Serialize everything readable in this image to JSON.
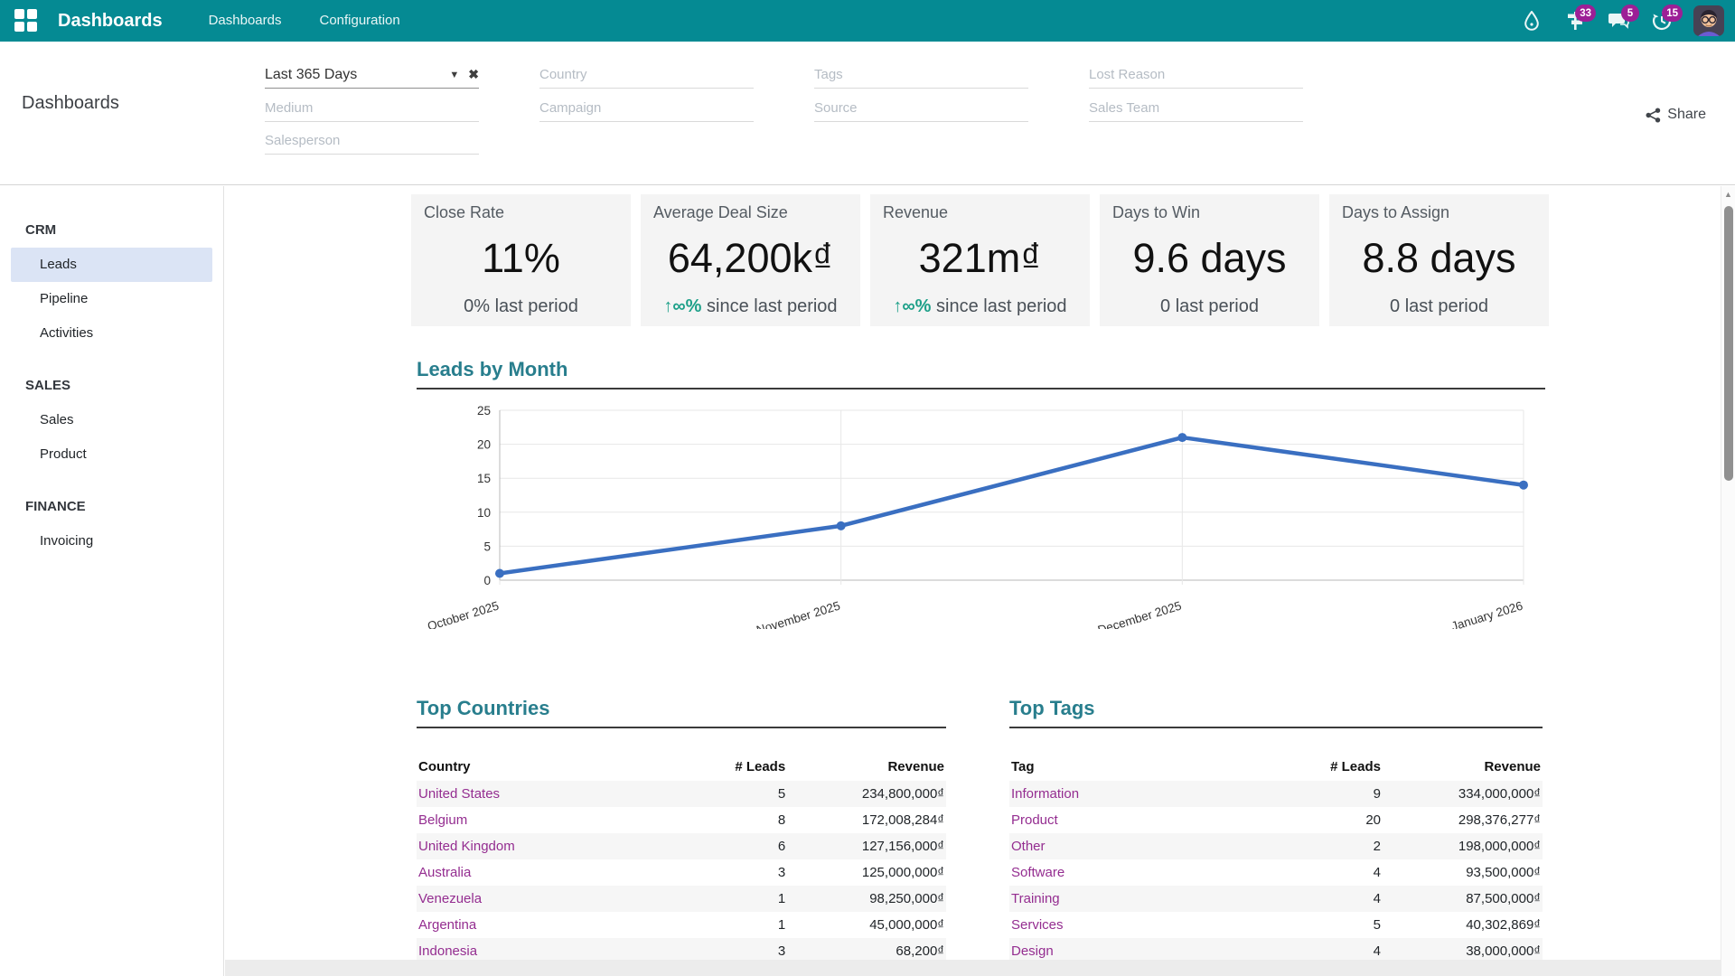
{
  "navbar": {
    "brand": "Dashboards",
    "menus": [
      "Dashboards",
      "Configuration"
    ],
    "icons": [
      "apps-grid-icon",
      "drop-icon",
      "activities-icon",
      "messages-icon",
      "history-icon",
      "avatar"
    ],
    "badges": {
      "activities": "33",
      "messages": "5",
      "history": "15"
    }
  },
  "header": {
    "page_title": "Dashboards",
    "share_label": "Share",
    "filters": {
      "facet": {
        "label": "Last 365 Days"
      },
      "placeholders": {
        "country": "Country",
        "tags": "Tags",
        "lost_reason": "Lost Reason",
        "medium": "Medium",
        "campaign": "Campaign",
        "source": "Source",
        "sales_team": "Sales Team",
        "salesperson": "Salesperson"
      }
    }
  },
  "sidebar": {
    "sections": [
      {
        "header": "CRM",
        "items": [
          {
            "label": "Leads",
            "active": true
          },
          {
            "label": "Pipeline"
          },
          {
            "label": "Activities"
          }
        ]
      },
      {
        "header": "SALES",
        "items": [
          {
            "label": "Sales"
          },
          {
            "label": "Product"
          }
        ]
      },
      {
        "header": "FINANCE",
        "items": [
          {
            "label": "Invoicing"
          }
        ]
      }
    ]
  },
  "kpis": [
    {
      "label": "Close Rate",
      "value": "11%",
      "trend_text": "",
      "sub": "0% last period"
    },
    {
      "label": "Average Deal Size",
      "value": "64,200k₫",
      "trend_text": "↑∞%",
      "sub": "since last period"
    },
    {
      "label": "Revenue",
      "value": "321m₫",
      "trend_text": "↑∞%",
      "sub": "since last period"
    },
    {
      "label": "Days to Win",
      "value": "9.6 days",
      "trend_text": "",
      "sub": "0 last period"
    },
    {
      "label": "Days to Assign",
      "value": "8.8 days",
      "trend_text": "",
      "sub": "0 last period"
    }
  ],
  "chart_data": {
    "type": "line",
    "title": "Leads by Month",
    "x": [
      "October 2025",
      "November 2025",
      "December 2025",
      "January 2026"
    ],
    "series": [
      {
        "name": "Leads",
        "values": [
          1,
          8,
          21,
          14
        ]
      }
    ],
    "ylim": [
      0,
      25
    ],
    "yticks": [
      0,
      5,
      10,
      15,
      20,
      25
    ],
    "grid": true,
    "legend": "none",
    "line_color": "#3A6FC1"
  },
  "tables": {
    "countries": {
      "title": "Top Countries",
      "headers": [
        "Country",
        "# Leads",
        "Revenue"
      ],
      "rows": [
        {
          "label": "United States",
          "leads": "5",
          "revenue": "234,800,000₫"
        },
        {
          "label": "Belgium",
          "leads": "8",
          "revenue": "172,008,284₫"
        },
        {
          "label": "United Kingdom",
          "leads": "6",
          "revenue": "127,156,000₫"
        },
        {
          "label": "Australia",
          "leads": "3",
          "revenue": "125,000,000₫"
        },
        {
          "label": "Venezuela",
          "leads": "1",
          "revenue": "98,250,000₫"
        },
        {
          "label": "Argentina",
          "leads": "1",
          "revenue": "45,000,000₫"
        },
        {
          "label": "Indonesia",
          "leads": "3",
          "revenue": "68,200₫"
        }
      ]
    },
    "tags": {
      "title": "Top Tags",
      "headers": [
        "Tag",
        "# Leads",
        "Revenue"
      ],
      "rows": [
        {
          "label": "Information",
          "leads": "9",
          "revenue": "334,000,000₫"
        },
        {
          "label": "Product",
          "leads": "20",
          "revenue": "298,376,277₫"
        },
        {
          "label": "Other",
          "leads": "2",
          "revenue": "198,000,000₫"
        },
        {
          "label": "Software",
          "leads": "4",
          "revenue": "93,500,000₫"
        },
        {
          "label": "Training",
          "leads": "4",
          "revenue": "87,500,000₫"
        },
        {
          "label": "Services",
          "leads": "5",
          "revenue": "40,302,869₫"
        },
        {
          "label": "Design",
          "leads": "4",
          "revenue": "38,000,000₫"
        }
      ]
    }
  },
  "colors": {
    "navbar": "#058A93",
    "accent_teal": "#287E8D",
    "badge": "#9C1F96",
    "link": "#942D90",
    "trend_positive": "#1EA089",
    "chart_line": "#3A6FC1",
    "active_item_bg": "#DBE4F5"
  }
}
